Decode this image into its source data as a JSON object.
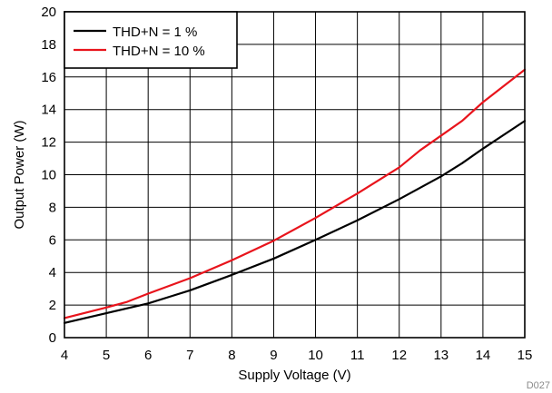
{
  "chart_data": {
    "type": "line",
    "title": "",
    "xlabel": "Supply Voltage (V)",
    "ylabel": "Output Power (W)",
    "xlim": [
      4,
      15
    ],
    "ylim": [
      0,
      20
    ],
    "x_ticks": [
      4,
      5,
      6,
      7,
      8,
      9,
      10,
      11,
      12,
      13,
      14,
      15
    ],
    "y_ticks": [
      0,
      2,
      4,
      6,
      8,
      10,
      12,
      14,
      16,
      18,
      20
    ],
    "grid": true,
    "legend_position": "top-left",
    "series": [
      {
        "name": "THD+N = 1 %",
        "color": "#000000",
        "x": [
          4,
          5,
          6,
          6.5,
          7,
          8,
          9,
          10,
          11,
          12,
          13,
          13.5,
          14,
          15
        ],
        "y": [
          0.9,
          1.5,
          2.1,
          2.5,
          2.9,
          3.85,
          4.85,
          6.0,
          7.2,
          8.5,
          9.9,
          10.7,
          11.6,
          13.3
        ]
      },
      {
        "name": "THD+N = 10 %",
        "color": "#e8141c",
        "x": [
          4,
          5,
          5.5,
          6,
          7,
          8,
          9,
          10,
          11,
          12,
          12.5,
          13,
          13.5,
          14,
          15
        ],
        "y": [
          1.2,
          1.85,
          2.2,
          2.7,
          3.65,
          4.75,
          5.95,
          7.35,
          8.85,
          10.45,
          11.5,
          12.4,
          13.3,
          14.45,
          16.45
        ]
      }
    ]
  },
  "footer": {
    "figure_id": "D027"
  }
}
